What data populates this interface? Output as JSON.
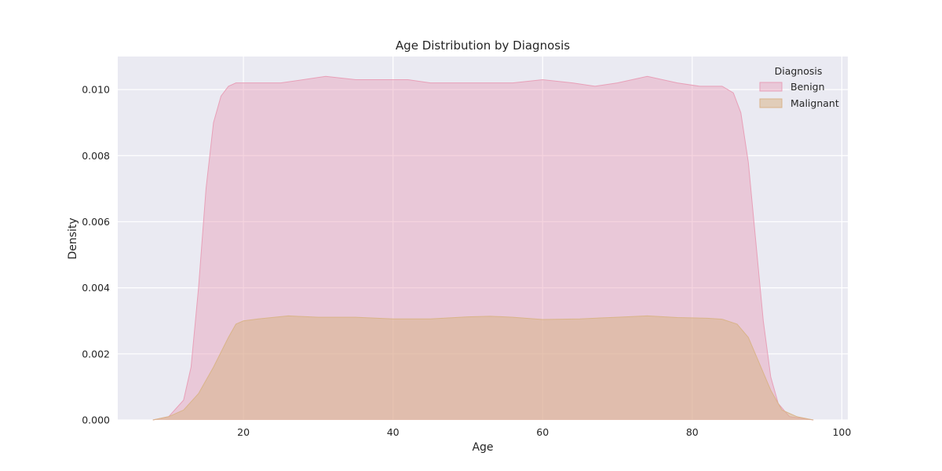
{
  "chart_data": {
    "type": "area",
    "title": "Age Distribution by Diagnosis",
    "xlabel": "Age",
    "ylabel": "Density",
    "xlim": [
      3.2,
      100.8
    ],
    "ylim": [
      0,
      0.011
    ],
    "xticks": [
      20,
      40,
      60,
      80,
      100
    ],
    "xtick_labels": [
      "20",
      "40",
      "60",
      "80",
      "100"
    ],
    "yticks": [
      0.0,
      0.002,
      0.004,
      0.006,
      0.008,
      0.01
    ],
    "ytick_labels": [
      "0.000",
      "0.002",
      "0.004",
      "0.006",
      "0.008",
      "0.010"
    ],
    "grid": true,
    "legend": {
      "title": "Diagnosis",
      "position": "top-right"
    },
    "series": [
      {
        "name": "Benign",
        "color": "#e8a0b8",
        "fill_opacity": 0.45,
        "points": [
          [
            7.9,
            0.0
          ],
          [
            10,
            0.0001
          ],
          [
            12,
            0.0006
          ],
          [
            13,
            0.0016
          ],
          [
            14,
            0.004
          ],
          [
            15,
            0.007
          ],
          [
            16,
            0.009
          ],
          [
            17,
            0.0098
          ],
          [
            18,
            0.0101
          ],
          [
            19,
            0.0102
          ],
          [
            20,
            0.0102
          ],
          [
            25,
            0.0102
          ],
          [
            28,
            0.0103
          ],
          [
            31,
            0.0104
          ],
          [
            35,
            0.0103
          ],
          [
            38,
            0.0103
          ],
          [
            42,
            0.0103
          ],
          [
            45,
            0.0102
          ],
          [
            50,
            0.0102
          ],
          [
            53,
            0.0102
          ],
          [
            56,
            0.0102
          ],
          [
            60,
            0.0103
          ],
          [
            64,
            0.0102
          ],
          [
            67,
            0.0101
          ],
          [
            70,
            0.0102
          ],
          [
            74,
            0.0104
          ],
          [
            78,
            0.0102
          ],
          [
            81,
            0.0101
          ],
          [
            84,
            0.0101
          ],
          [
            85.5,
            0.0099
          ],
          [
            86.5,
            0.0093
          ],
          [
            87.5,
            0.0078
          ],
          [
            88.5,
            0.0054
          ],
          [
            89.5,
            0.003
          ],
          [
            90.5,
            0.0013
          ],
          [
            91.5,
            0.0005
          ],
          [
            93,
            0.0001
          ],
          [
            96.2,
            0.0
          ]
        ]
      },
      {
        "name": "Malignant",
        "color": "#d9b48a",
        "fill_opacity": 0.55,
        "points": [
          [
            7.9,
            0.0
          ],
          [
            10,
            0.0001
          ],
          [
            12,
            0.0003
          ],
          [
            14,
            0.0008
          ],
          [
            16,
            0.0016
          ],
          [
            18,
            0.0025
          ],
          [
            19,
            0.0029
          ],
          [
            20,
            0.003
          ],
          [
            22,
            0.00306
          ],
          [
            26,
            0.00315
          ],
          [
            30,
            0.00311
          ],
          [
            35,
            0.00311
          ],
          [
            40,
            0.00306
          ],
          [
            45,
            0.00306
          ],
          [
            50,
            0.00312
          ],
          [
            53,
            0.00314
          ],
          [
            56,
            0.00311
          ],
          [
            60,
            0.00304
          ],
          [
            65,
            0.00306
          ],
          [
            70,
            0.00311
          ],
          [
            74,
            0.00315
          ],
          [
            78,
            0.0031
          ],
          [
            82,
            0.00308
          ],
          [
            84,
            0.00305
          ],
          [
            86,
            0.0029
          ],
          [
            87.5,
            0.0025
          ],
          [
            89,
            0.0017
          ],
          [
            90.5,
            0.0009
          ],
          [
            92,
            0.0003
          ],
          [
            94,
            0.0001
          ],
          [
            96.2,
            0.0
          ]
        ]
      }
    ]
  }
}
